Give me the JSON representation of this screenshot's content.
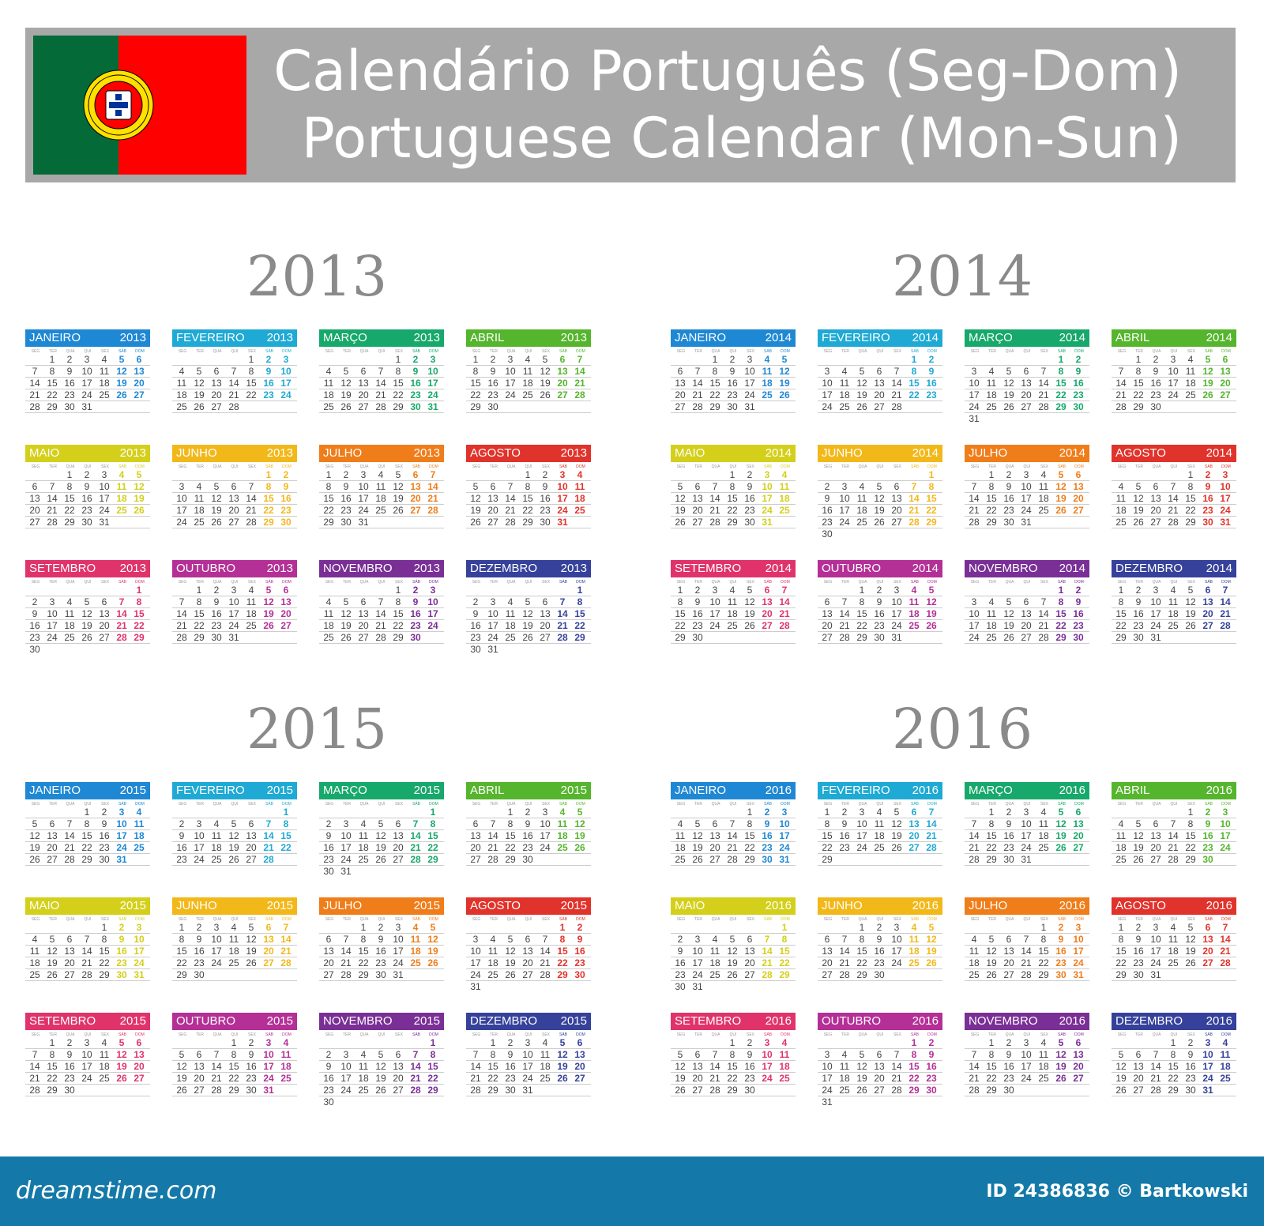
{
  "header": {
    "title_pt": "Calendário Português (Seg-Dom)",
    "title_en": "Portuguese Calendar (Mon-Sun)",
    "flag_icon": "portugal-flag-icon"
  },
  "weekday_labels": [
    "SEG",
    "TER",
    "QUA",
    "QUI",
    "SEX",
    "SÁB",
    "DOM"
  ],
  "month_names": [
    "JANEIRO",
    "FEVEREIRO",
    "MARÇO",
    "ABRIL",
    "MAIO",
    "JUNHO",
    "JULHO",
    "AGOSTO",
    "SETEMBRO",
    "OUTUBRO",
    "NOVEMBRO",
    "DEZEMBRO"
  ],
  "month_colors": [
    "#1e88d4",
    "#1eaad4",
    "#17a86b",
    "#55b52d",
    "#d4cf1a",
    "#f2b81a",
    "#ef7d1a",
    "#e0332b",
    "#e0336b",
    "#b42f96",
    "#7a2f96",
    "#35419a"
  ],
  "years": [
    "2013",
    "2014",
    "2015",
    "2016"
  ],
  "footer": {
    "site": "dreamstime.com",
    "credit": "ID 24386836 © Bartkowski"
  }
}
